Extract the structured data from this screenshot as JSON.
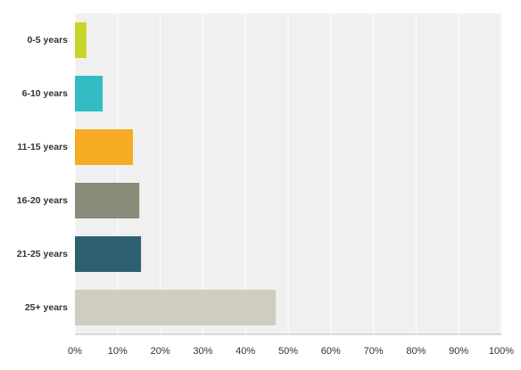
{
  "chart_data": {
    "type": "hbar",
    "categories": [
      "0-5 years",
      "6-10 years",
      "11-15 years",
      "16-20 years",
      "21-25 years",
      "25+ years"
    ],
    "values": [
      2.7,
      6.5,
      13.6,
      15.1,
      15.5,
      47.1
    ],
    "colors": [
      "#c9d52b",
      "#33bcc3",
      "#f5ab23",
      "#8a8b78",
      "#2e6170",
      "#cfcdbf"
    ],
    "xlim": [
      0,
      100
    ],
    "xticks": [
      {
        "value": 0,
        "label": "0%"
      },
      {
        "value": 10,
        "label": "10%"
      },
      {
        "value": 20,
        "label": "20%"
      },
      {
        "value": 30,
        "label": "30%"
      },
      {
        "value": 40,
        "label": "40%"
      },
      {
        "value": 50,
        "label": "50%"
      },
      {
        "value": 60,
        "label": "60%"
      },
      {
        "value": 70,
        "label": "70%"
      },
      {
        "value": 80,
        "label": "80%"
      },
      {
        "value": 90,
        "label": "90%"
      },
      {
        "value": 100,
        "label": "100%"
      }
    ],
    "grid": true
  }
}
